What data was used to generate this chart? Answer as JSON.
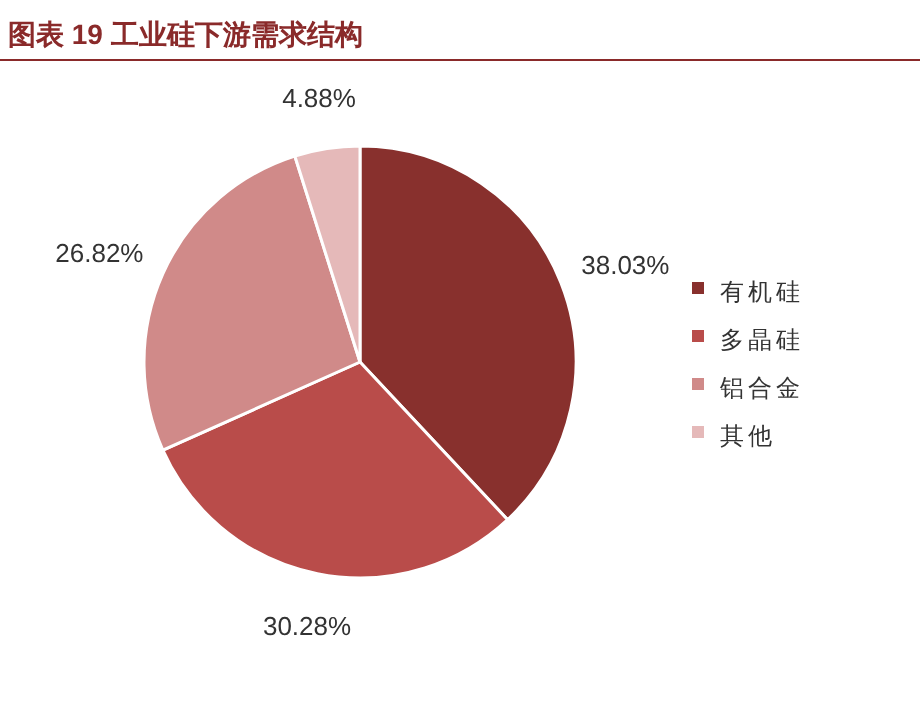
{
  "chart_data": {
    "type": "pie",
    "title": "图表 19  工业硅下游需求结构",
    "categories": [
      "有机硅",
      "多晶硅",
      "铝合金",
      "其他"
    ],
    "values": [
      38.03,
      30.28,
      26.82,
      4.88
    ],
    "colors": [
      "#88302d",
      "#b94c4a",
      "#d08a89",
      "#e5b9b9"
    ],
    "value_labels": [
      "38.03%",
      "30.28%",
      "26.82%",
      "4.88%"
    ],
    "legend": "right"
  }
}
